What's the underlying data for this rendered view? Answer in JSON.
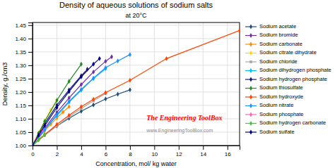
{
  "chart_data": {
    "type": "line",
    "title": "Density of aqueous solutions of sodium salts",
    "subtitle": "at 20°C",
    "xlabel": "Concentration, mol/ kg water",
    "ylabel": "Density, g./cm3",
    "annotations": [
      "The Engineering ToolBox",
      "www.EngineeringToolBox.com"
    ],
    "xlim": [
      0,
      17
    ],
    "ylim": [
      1.0,
      1.46
    ],
    "xticks": [
      0,
      2,
      4,
      6,
      8,
      10,
      12,
      14,
      16
    ],
    "yticks": [
      {
        "value": 1.0,
        "label": "1.00"
      },
      1.05,
      {
        "value": 1.1,
        "label": "1.10"
      },
      1.15,
      {
        "value": 1.2,
        "label": "1.20"
      },
      1.25,
      {
        "value": 1.3,
        "label": "1.30"
      },
      1.35,
      {
        "value": 1.4,
        "label": "1.40"
      },
      1.45
    ],
    "grid": true,
    "legend": "right",
    "series": [
      {
        "name": "Sodium acetate",
        "color": "#1F4E79",
        "marker": "diamond",
        "x": [
          0,
          0.5,
          1,
          2,
          3,
          4,
          5,
          6,
          7,
          8
        ],
        "values": [
          1.0,
          1.022,
          1.041,
          1.073,
          1.102,
          1.128,
          1.152,
          1.174,
          1.192,
          1.208
        ]
      },
      {
        "name": "Sodium bromide",
        "color": "#7030A0",
        "marker": "diamond",
        "x": [
          0,
          0.5,
          1,
          2,
          3,
          4,
          5,
          6,
          6.5
        ],
        "values": [
          1.0,
          1.033,
          1.065,
          1.124,
          1.178,
          1.228,
          1.275,
          1.315,
          1.332
        ]
      },
      {
        "name": "Sodium carbonate",
        "color": "#FF8C00",
        "marker": "diamond",
        "x": [
          0,
          0.5,
          1,
          1.5,
          2,
          2.5,
          3
        ],
        "values": [
          1.0,
          1.028,
          1.055,
          1.08,
          1.103,
          1.125,
          1.145
        ]
      },
      {
        "name": "Sodium citrate dihydrate",
        "color": "#FFD700",
        "marker": "diamond",
        "x": [
          0,
          0.5,
          1,
          1.5,
          2
        ],
        "values": [
          1.0,
          1.047,
          1.092,
          1.133,
          1.17
        ]
      },
      {
        "name": "Sodium chloride",
        "color": "#A9A9A9",
        "marker": "square",
        "x": [
          0,
          1,
          2,
          3,
          4,
          5,
          6
        ],
        "values": [
          1.0,
          1.038,
          1.073,
          1.107,
          1.138,
          1.167,
          1.194
        ]
      },
      {
        "name": "Sodium dihydrogen phosphate",
        "color": "#00BFFF",
        "marker": "diamond",
        "x": [
          0,
          1,
          2,
          3,
          4,
          5,
          6
        ],
        "values": [
          1.0,
          1.058,
          1.112,
          1.162,
          1.207,
          1.25,
          1.287
        ]
      },
      {
        "name": "Sodium hydrogen phosphate",
        "color": "#191970",
        "marker": "diamond",
        "x": [
          0,
          0.5,
          1,
          2,
          3,
          4,
          4.5
        ],
        "values": [
          1.0,
          1.043,
          1.082,
          1.151,
          1.208,
          1.261,
          1.285
        ]
      },
      {
        "name": "Sodium thiosulfate",
        "color": "#228B22",
        "marker": "diamond",
        "x": [
          0,
          0.5,
          1,
          2,
          3,
          4
        ],
        "values": [
          1.0,
          1.046,
          1.09,
          1.169,
          1.24,
          1.304
        ]
      },
      {
        "name": "Sodium hydroxyde",
        "color": "#FF4500",
        "marker": "diamond",
        "x": [
          0,
          1,
          2,
          3,
          4,
          5,
          6,
          8,
          11,
          17
        ],
        "values": [
          1.0,
          1.04,
          1.079,
          1.113,
          1.145,
          1.173,
          1.198,
          1.244,
          1.325,
          1.43
        ]
      },
      {
        "name": "Sodium nitrate",
        "color": "#1E90FF",
        "marker": "diamond",
        "x": [
          0,
          1,
          2,
          3,
          4,
          5,
          6,
          7,
          8
        ],
        "values": [
          1.0,
          1.06,
          1.115,
          1.165,
          1.21,
          1.252,
          1.291,
          1.316,
          1.34
        ]
      },
      {
        "name": "Sodium phosphate",
        "color": "#FF69B4",
        "marker": "diamond",
        "x": [
          0,
          0.3,
          0.5,
          0.8,
          1.0
        ],
        "values": [
          1.0,
          1.022,
          1.036,
          1.058,
          1.072
        ]
      },
      {
        "name": "Sodium hydrogen carbonate",
        "color": "#32CD32",
        "marker": "diamond",
        "x": [
          0,
          0.5,
          1.0
        ],
        "values": [
          1.0,
          1.021,
          1.041
        ]
      },
      {
        "name": "Sodium sulfate",
        "color": "#00008B",
        "marker": "diamond",
        "x": [
          0,
          0.5,
          1,
          2,
          3,
          4,
          5,
          5.5
        ],
        "values": [
          1.0,
          1.038,
          1.074,
          1.142,
          1.202,
          1.257,
          1.304,
          1.325
        ]
      }
    ]
  }
}
